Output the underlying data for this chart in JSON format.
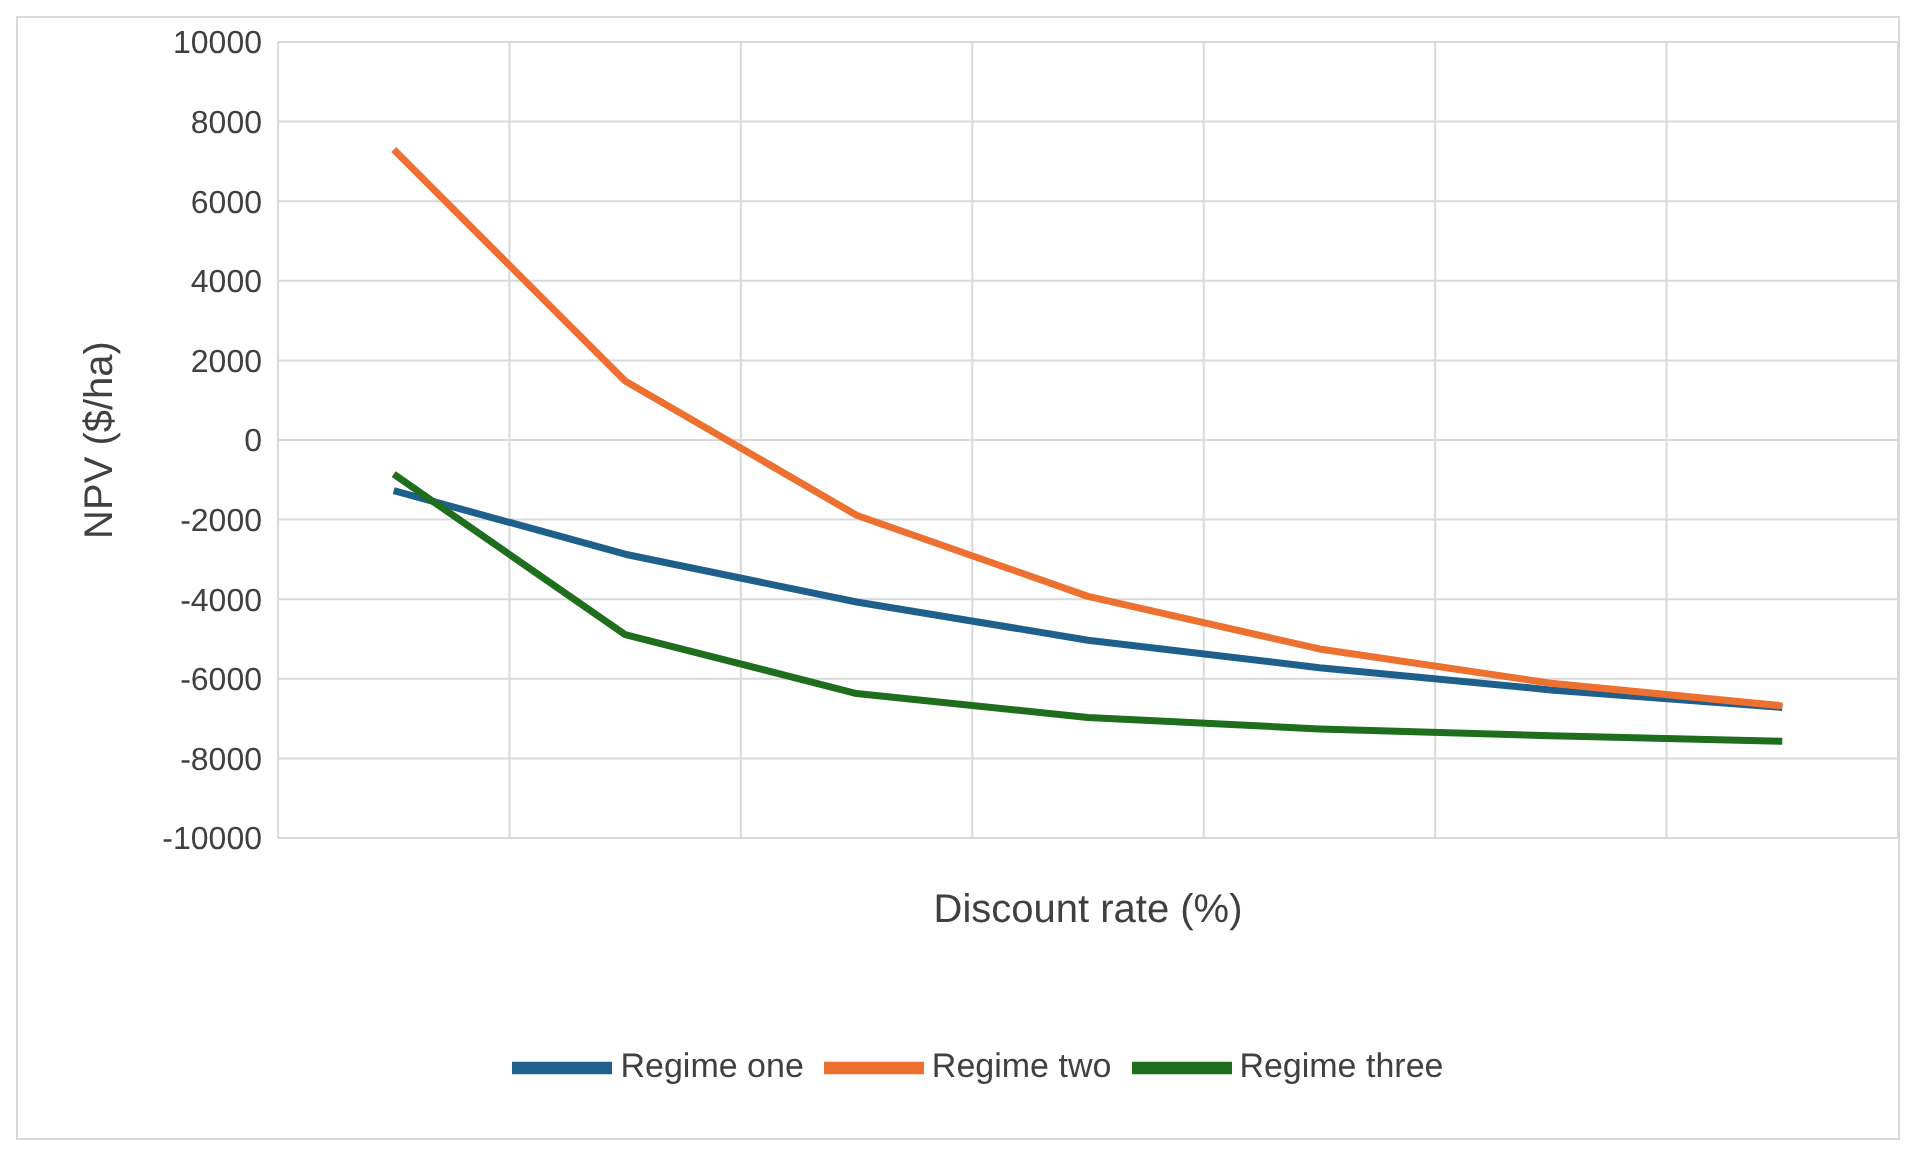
{
  "chart_data": {
    "type": "line",
    "xlabel": "Discount rate (%)",
    "ylabel": "NPV ($/ha)",
    "categories": [
      null,
      null,
      null,
      null,
      null,
      null,
      null
    ],
    "series": [
      {
        "name": "Regime one",
        "color": "#1f5f8b",
        "values": [
          -1270,
          -2870,
          -4070,
          -5030,
          -5720,
          -6280,
          -6720
        ]
      },
      {
        "name": "Regime two",
        "color": "#ed7031",
        "values": [
          7300,
          1480,
          -1890,
          -3930,
          -5250,
          -6110,
          -6680
        ]
      },
      {
        "name": "Regime three",
        "color": "#1e6e1e",
        "values": [
          -860,
          -4890,
          -6370,
          -6970,
          -7260,
          -7430,
          -7570
        ]
      }
    ],
    "ylim": [
      -10000,
      10000
    ],
    "yticks": [
      -10000,
      -8000,
      -6000,
      -4000,
      -2000,
      0,
      2000,
      4000,
      6000,
      8000,
      10000
    ],
    "grid": true,
    "legend": "bottom",
    "marker": "none",
    "line_style": "solid"
  }
}
